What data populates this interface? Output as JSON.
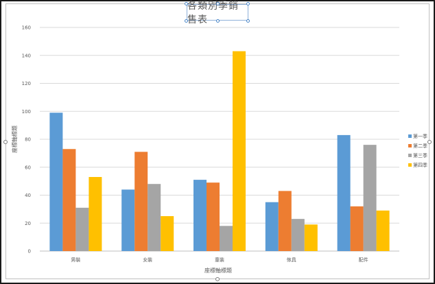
{
  "chart_data": {
    "type": "bar",
    "title": "各類別季銷售表",
    "xlabel": "座標軸標題",
    "ylabel": "座標軸標題",
    "categories": [
      "男裝",
      "女裝",
      "童裝",
      "傢具",
      "配件"
    ],
    "series": [
      {
        "name": "第一季",
        "color": "#5b9bd5",
        "values": [
          99,
          44,
          51,
          35,
          83
        ]
      },
      {
        "name": "第二季",
        "color": "#ed7d31",
        "values": [
          73,
          71,
          49,
          43,
          32
        ]
      },
      {
        "name": "第三季",
        "color": "#a5a5a5",
        "values": [
          31,
          48,
          18,
          23,
          76
        ]
      },
      {
        "name": "第四季",
        "color": "#ffc000",
        "values": [
          53,
          25,
          143,
          19,
          29
        ]
      }
    ],
    "ylim": [
      0,
      160
    ],
    "yticks": [
      0,
      20,
      40,
      60,
      80,
      100,
      120,
      140,
      160
    ],
    "grid": true,
    "legend_position": "right"
  }
}
